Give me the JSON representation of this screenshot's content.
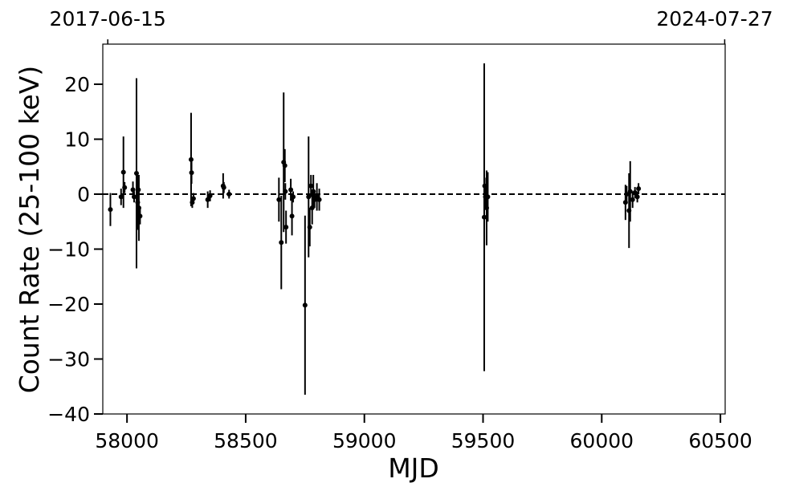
{
  "chart_data": {
    "type": "errorbar",
    "xlabel": "MJD",
    "ylabel": "Count Rate (25-100 keV)",
    "color": "#000000",
    "xlim": [
      57898,
      60520
    ],
    "ylim": [
      -40,
      27.3
    ],
    "xticks": [
      58000,
      58500,
      59000,
      59500,
      60000,
      60500
    ],
    "yticks": [
      {
        "value": -40,
        "label": "−40"
      },
      {
        "value": -30,
        "label": "−30"
      },
      {
        "value": -20,
        "label": "−20"
      },
      {
        "value": -10,
        "label": "−10"
      },
      0,
      10,
      20
    ],
    "top_ticks": [
      {
        "value": 57919,
        "label": "2017-06-15"
      },
      {
        "value": 60518,
        "label": "2024-07-27"
      }
    ],
    "reference_line": 0,
    "x": [
      57930,
      57975,
      57985,
      57990,
      58025,
      58030,
      58040,
      58045,
      58048,
      58050,
      58055,
      58270,
      58272,
      58275,
      58280,
      58340,
      58350,
      58405,
      58408,
      58430,
      58640,
      58650,
      58660,
      58665,
      58667,
      58670,
      58690,
      58695,
      58700,
      58750,
      58765,
      58770,
      58775,
      58780,
      58785,
      58790,
      58800,
      58810,
      59505,
      59507,
      59510,
      59515,
      59520,
      60100,
      60105,
      60115,
      60120,
      60130,
      60140,
      60150,
      60155
    ],
    "values": [
      -2.8,
      -0.5,
      4.0,
      1.2,
      0.8,
      -0.5,
      3.8,
      -1.5,
      0.8,
      -2.5,
      -4.0,
      6.3,
      3.9,
      -1.5,
      -0.8,
      -1.0,
      -0.3,
      1.5,
      1.2,
      0.0,
      -1.0,
      -8.8,
      5.8,
      5.2,
      0.5,
      -6.0,
      0.8,
      -4.0,
      -0.5,
      -20.2,
      -0.5,
      -6.0,
      1.5,
      -2.5,
      0.5,
      -1.0,
      -0.5,
      -1.0,
      -4.2,
      1.5,
      -0.5,
      -2.5,
      -0.5,
      -1.5,
      0.0,
      -3.0,
      0.5,
      -1.0,
      0.3,
      -0.5,
      1.0
    ],
    "errors": [
      3.0,
      1.5,
      6.5,
      1.0,
      1.5,
      1.0,
      17.3,
      5.0,
      2.5,
      6.0,
      1.5,
      8.5,
      2.0,
      1.0,
      1.0,
      1.5,
      1.0,
      2.3,
      1.0,
      0.8,
      4.0,
      8.5,
      12.7,
      3.0,
      1.5,
      3.0,
      2.0,
      3.5,
      1.0,
      16.3,
      11.0,
      3.5,
      2.0,
      3.0,
      3.0,
      1.5,
      2.5,
      2.0,
      28.0,
      1.5,
      2.0,
      6.8,
      4.5,
      3.2,
      1.5,
      6.8,
      5.5,
      1.5,
      1.0,
      1.0,
      1.0
    ]
  }
}
